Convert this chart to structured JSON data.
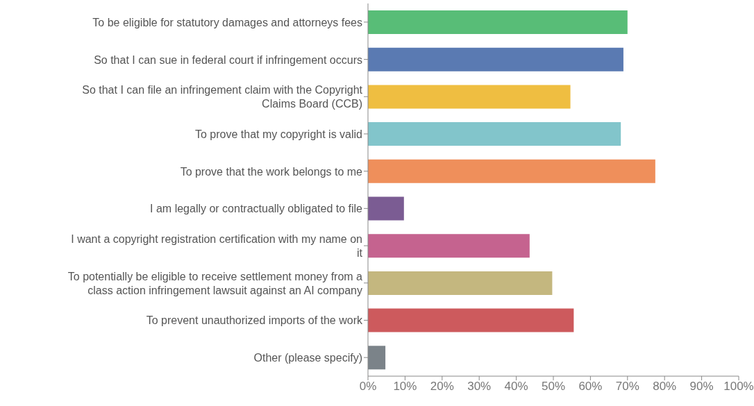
{
  "chart_data": {
    "type": "bar",
    "orientation": "horizontal",
    "categories": [
      "To be eligible for statutory damages and attorneys fees",
      "So that I can sue in federal court if infringement occurs",
      "So that I can file an infringement claim with the Copyright Claims Board (CCB)",
      "To prove that my copyright is valid",
      "To prove that the work belongs to me",
      "I am legally or contractually obligated to file",
      "I want a copyright registration certification with my name on it",
      "To potentially be eligible to receive settlement money from a class action infringement lawsuit against an AI company",
      "To prevent unauthorized imports of the work",
      "Other (please specify)"
    ],
    "values": [
      70.0,
      68.9,
      54.6,
      68.2,
      77.5,
      9.7,
      43.6,
      49.7,
      55.5,
      4.7
    ],
    "colors": [
      "#58bd77",
      "#5a7ab2",
      "#efbe41",
      "#82c5cb",
      "#ef8f5b",
      "#7b5c93",
      "#c5638f",
      "#c4b77f",
      "#cd5a5d",
      "#7b8389"
    ],
    "xlim": [
      0,
      100
    ],
    "xticks": [
      {
        "value": 0,
        "label": "0%"
      },
      {
        "value": 10,
        "label": "10%"
      },
      {
        "value": 20,
        "label": "20%"
      },
      {
        "value": 30,
        "label": "30%"
      },
      {
        "value": 40,
        "label": "40%"
      },
      {
        "value": 50,
        "label": "50%"
      },
      {
        "value": 60,
        "label": "60%"
      },
      {
        "value": 70,
        "label": "70%"
      },
      {
        "value": 80,
        "label": "80%"
      },
      {
        "value": 90,
        "label": "90%"
      },
      {
        "value": 100,
        "label": "100%"
      }
    ],
    "grid": false,
    "legend": false
  }
}
